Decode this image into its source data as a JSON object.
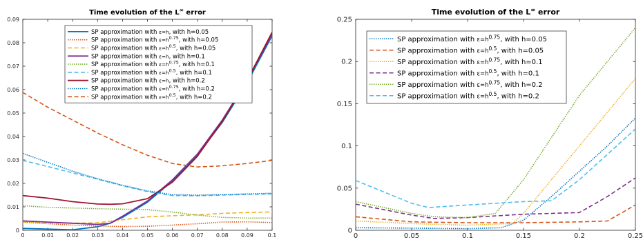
{
  "chart_data": [
    {
      "type": "line",
      "title": "Time evolution of the L",
      "title_sup": "∞",
      "title_suffix": " error",
      "xlabel": "",
      "ylabel": "",
      "xlim": [
        0,
        0.1
      ],
      "ylim": [
        0,
        0.09
      ],
      "xticks": [
        "0",
        "0.01",
        "0.02",
        "0.03",
        "0.04",
        "0.05",
        "0.06",
        "0.07",
        "0.08",
        "0.09",
        "0.1"
      ],
      "yticks": [
        "0",
        "0.01",
        "0.02",
        "0.03",
        "0.04",
        "0.05",
        "0.06",
        "0.07",
        "0.08",
        "0.09"
      ],
      "legend_position": "top-right",
      "series": [
        {
          "legend": [
            "SP approximation with ",
            "ε=h",
            "",
            ", with h=0.05"
          ],
          "color": "#0072BD",
          "dash": "solid",
          "x": [
            0,
            0.01,
            0.02,
            0.03,
            0.035,
            0.04,
            0.05,
            0.06,
            0.07,
            0.08,
            0.09,
            0.1
          ],
          "y": [
            0.0008,
            0.0005,
            0.0002,
            0.0015,
            0.003,
            0.0055,
            0.012,
            0.021,
            0.032,
            0.046,
            0.063,
            0.083
          ]
        },
        {
          "legend": [
            "SP approximation with ",
            "ε=h",
            "0.75",
            ", with h=0.05"
          ],
          "color": "#D95319",
          "dash": "dot",
          "x": [
            0,
            0.01,
            0.02,
            0.03,
            0.04,
            0.05,
            0.06,
            0.07,
            0.08,
            0.09,
            0.1
          ],
          "y": [
            0.0035,
            0.0028,
            0.0022,
            0.0018,
            0.0016,
            0.0017,
            0.0022,
            0.0028,
            0.0035,
            0.0036,
            0.0033
          ]
        },
        {
          "legend": [
            "SP approximation with ",
            "ε=h",
            "0.5",
            ", with h=0.05"
          ],
          "color": "#EDB120",
          "dash": "dash",
          "x": [
            0,
            0.01,
            0.02,
            0.03,
            0.04,
            0.05,
            0.06,
            0.07,
            0.08,
            0.09,
            0.1
          ],
          "y": [
            0.0035,
            0.0032,
            0.003,
            0.0032,
            0.0045,
            0.0057,
            0.0062,
            0.0066,
            0.0072,
            0.0076,
            0.0078
          ]
        },
        {
          "legend": [
            "SP approximation with ",
            "ε=h",
            "",
            ", with h=0.1"
          ],
          "color": "#7E2F8E",
          "dash": "solid",
          "x": [
            0,
            0.01,
            0.02,
            0.03,
            0.035,
            0.04,
            0.05,
            0.06,
            0.07,
            0.08,
            0.09,
            0.1
          ],
          "y": [
            0.004,
            0.0035,
            0.003,
            0.0025,
            0.003,
            0.006,
            0.0125,
            0.0215,
            0.0325,
            0.047,
            0.064,
            0.0838
          ]
        },
        {
          "legend": [
            "SP approximation with ",
            "ε=h",
            "0.75",
            ", with h=0.1"
          ],
          "color": "#77AC30",
          "dash": "dot",
          "x": [
            0,
            0.01,
            0.02,
            0.03,
            0.04,
            0.05,
            0.06,
            0.07,
            0.08,
            0.09,
            0.1
          ],
          "y": [
            0.0105,
            0.0098,
            0.0095,
            0.0092,
            0.009,
            0.0088,
            0.0078,
            0.0065,
            0.0055,
            0.0052,
            0.0052
          ]
        },
        {
          "legend": [
            "SP approximation with ",
            "ε=h",
            "0.5",
            ", with h=0.1"
          ],
          "color": "#4DBEEE",
          "dash": "dash",
          "x": [
            0,
            0.01,
            0.02,
            0.03,
            0.04,
            0.05,
            0.06,
            0.07,
            0.08,
            0.09,
            0.1
          ],
          "y": [
            0.0298,
            0.0272,
            0.0245,
            0.0218,
            0.019,
            0.0165,
            0.0148,
            0.0147,
            0.015,
            0.0153,
            0.0155
          ]
        },
        {
          "legend": [
            "SP approximation with ",
            "ε=h",
            "",
            ", with h=0.2"
          ],
          "color": "#A2142F",
          "dash": "solid",
          "x": [
            0,
            0.01,
            0.02,
            0.03,
            0.035,
            0.04,
            0.05,
            0.06,
            0.07,
            0.08,
            0.09,
            0.1
          ],
          "y": [
            0.0148,
            0.0137,
            0.0122,
            0.0112,
            0.0111,
            0.0113,
            0.0135,
            0.0205,
            0.0315,
            0.0465,
            0.064,
            0.0845
          ]
        },
        {
          "legend": [
            "SP approximation with ",
            "ε=h",
            "0.75",
            ", with h=0.2"
          ],
          "color": "#0072BD",
          "dash": "dot",
          "x": [
            0,
            0.01,
            0.02,
            0.03,
            0.04,
            0.05,
            0.06,
            0.07,
            0.08,
            0.09,
            0.1
          ],
          "y": [
            0.0328,
            0.029,
            0.0252,
            0.022,
            0.0192,
            0.0168,
            0.0152,
            0.015,
            0.0152,
            0.0155,
            0.0158
          ]
        },
        {
          "legend": [
            "SP approximation with ",
            "ε=h",
            "0.5",
            ", with h=0.2"
          ],
          "color": "#D95319",
          "dash": "dash",
          "x": [
            0,
            0.01,
            0.02,
            0.03,
            0.04,
            0.05,
            0.06,
            0.07,
            0.08,
            0.09,
            0.1
          ],
          "y": [
            0.0588,
            0.0525,
            0.047,
            0.0415,
            0.0365,
            0.032,
            0.0285,
            0.027,
            0.0275,
            0.0285,
            0.0298
          ]
        }
      ]
    },
    {
      "type": "line",
      "title": "Time evolution of the L",
      "title_sup": "∞",
      "title_suffix": " error",
      "xlabel": "",
      "ylabel": "",
      "xlim": [
        0,
        0.25
      ],
      "ylim": [
        0,
        0.25
      ],
      "xticks": [
        "0",
        "0.05",
        "0.1",
        "0.15",
        "0.2",
        "0.25"
      ],
      "yticks": [
        "0",
        "0.05",
        "0.1",
        "0.15",
        "0.2",
        "0.25"
      ],
      "legend_position": "top-left",
      "series": [
        {
          "legend": [
            "SP approximation with ",
            "ε=h",
            "0.75",
            ", with h=0.05"
          ],
          "color": "#0072BD",
          "dash": "dot",
          "x": [
            0,
            0.05,
            0.1,
            0.13,
            0.15,
            0.175,
            0.2,
            0.225,
            0.25
          ],
          "y": [
            0.003,
            0.0025,
            0.002,
            0.003,
            0.012,
            0.04,
            0.07,
            0.1,
            0.133
          ]
        },
        {
          "legend": [
            "SP approximation with ",
            "ε=h",
            "0.5",
            ", with h=0.05"
          ],
          "color": "#D95319",
          "dash": "dash",
          "x": [
            0,
            0.05,
            0.1,
            0.15,
            0.2,
            0.225,
            0.25
          ],
          "y": [
            0.016,
            0.01,
            0.009,
            0.009,
            0.01,
            0.011,
            0.03
          ]
        },
        {
          "legend": [
            "SP approximation with ",
            "ε=h",
            "0.75",
            ", with h=0.1"
          ],
          "color": "#EDB120",
          "dash": "dot",
          "x": [
            0,
            0.05,
            0.1,
            0.14,
            0.15,
            0.175,
            0.2,
            0.225,
            0.25
          ],
          "y": [
            0.011,
            0.008,
            0.006,
            0.008,
            0.02,
            0.06,
            0.1,
            0.14,
            0.18
          ]
        },
        {
          "legend": [
            "SP approximation with ",
            "ε=h",
            "0.5",
            ", with h=0.1"
          ],
          "color": "#7E2F8E",
          "dash": "dash",
          "x": [
            0,
            0.05,
            0.07,
            0.1,
            0.15,
            0.2,
            0.225,
            0.25
          ],
          "y": [
            0.031,
            0.018,
            0.014,
            0.015,
            0.019,
            0.021,
            0.04,
            0.062
          ]
        },
        {
          "legend": [
            "SP approximation with ",
            "ε=h",
            "0.75",
            ", with h=0.2"
          ],
          "color": "#77AC30",
          "dash": "dot",
          "x": [
            0,
            0.05,
            0.07,
            0.1,
            0.125,
            0.15,
            0.175,
            0.2,
            0.225,
            0.25
          ],
          "y": [
            0.034,
            0.02,
            0.016,
            0.015,
            0.02,
            0.06,
            0.11,
            0.16,
            0.2,
            0.24
          ]
        },
        {
          "legend": [
            "SP approximation with ",
            "ε=h",
            "0.5",
            ", with h=0.2"
          ],
          "color": "#4DBEEE",
          "dash": "dash",
          "x": [
            0,
            0.05,
            0.065,
            0.1,
            0.15,
            0.175,
            0.2,
            0.225,
            0.25
          ],
          "y": [
            0.059,
            0.032,
            0.027,
            0.03,
            0.034,
            0.035,
            0.06,
            0.09,
            0.12
          ]
        }
      ]
    }
  ]
}
